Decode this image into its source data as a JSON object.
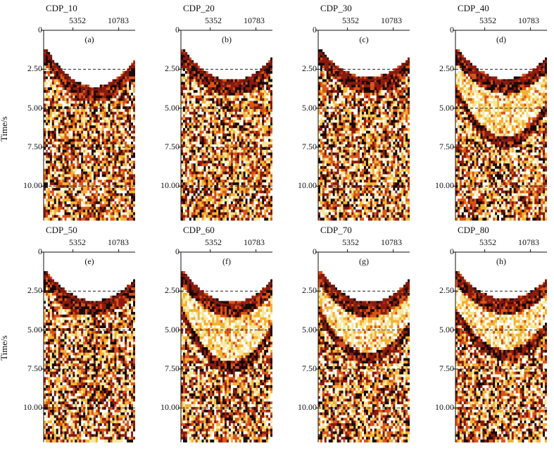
{
  "figure": {
    "y_axis_title": "Time/s",
    "x_ticks": [
      "5352",
      "10783"
    ],
    "y_ticks": [
      "0",
      "2.50",
      "5.00",
      "7.50",
      "10.00"
    ],
    "y_tick_values": [
      0,
      2.5,
      5.0,
      7.5,
      10.0
    ],
    "y_range": [
      0,
      12.2
    ],
    "dashed_reference_lines_s": [
      2.5,
      5.0,
      7.5,
      10.0
    ],
    "colormap": [
      "#ffffff",
      "#f7e79a",
      "#f2b233",
      "#d9531a",
      "#8b1a0e",
      "#1a0804"
    ]
  },
  "panels": [
    {
      "title": "CDP_10",
      "label": "(a)",
      "first_arrival_apex_s": 3.8,
      "second_event_apex_s": null
    },
    {
      "title": "CDP_20",
      "label": "(b)",
      "first_arrival_apex_s": 3.4,
      "second_event_apex_s": null
    },
    {
      "title": "CDP_30",
      "label": "(c)",
      "first_arrival_apex_s": 3.2,
      "second_event_apex_s": null
    },
    {
      "title": "CDP_40",
      "label": "(d)",
      "first_arrival_apex_s": 3.3,
      "second_event_apex_s": 7.2
    },
    {
      "title": "CDP_50",
      "label": "(e)",
      "first_arrival_apex_s": 3.3,
      "second_event_apex_s": null
    },
    {
      "title": "CDP_60",
      "label": "(f)",
      "first_arrival_apex_s": 3.4,
      "second_event_apex_s": 7.4
    },
    {
      "title": "CDP_70",
      "label": "(g)",
      "first_arrival_apex_s": 3.4,
      "second_event_apex_s": 6.8
    },
    {
      "title": "CDP_80",
      "label": "(h)",
      "first_arrival_apex_s": 3.2,
      "second_event_apex_s": 6.6
    }
  ]
}
